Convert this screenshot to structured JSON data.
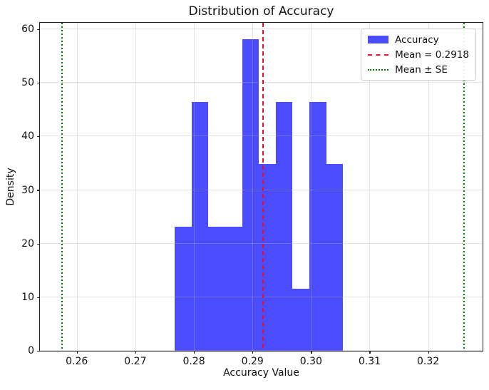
{
  "chart_data": {
    "type": "bar",
    "subtype": "histogram",
    "title": "Distribution of Accuracy",
    "xlabel": "Accuracy Value",
    "ylabel": "Density",
    "xlim": [
      0.2537,
      0.3293
    ],
    "ylim": [
      0,
      61.2
    ],
    "grid": true,
    "grid_color": "rgba(176,176,176,0.35)",
    "x_ticks": [
      0.26,
      0.27,
      0.28,
      0.29,
      0.3,
      0.31,
      0.32
    ],
    "x_tick_labels": [
      "0.26",
      "0.27",
      "0.28",
      "0.29",
      "0.30",
      "0.31",
      "0.32"
    ],
    "y_ticks": [
      0,
      10,
      20,
      30,
      40,
      50,
      60
    ],
    "y_tick_labels": [
      "0",
      "10",
      "20",
      "30",
      "40",
      "50",
      "60"
    ],
    "histogram": {
      "label": "Accuracy",
      "color": "#4C4CFF",
      "bin_edges": [
        0.27673,
        0.2796,
        0.28248,
        0.28535,
        0.28822,
        0.29109,
        0.29396,
        0.29684,
        0.29971,
        0.30258,
        0.30545
      ],
      "densities": [
        23.2,
        46.5,
        23.2,
        23.2,
        58.1,
        34.8,
        46.5,
        11.6,
        46.5,
        34.8
      ]
    },
    "vlines": [
      {
        "x": 0.2918,
        "color": "#E8112D",
        "style": "dashed",
        "label": "Mean = 0.2918"
      },
      {
        "x": 0.2575,
        "color": "#008000",
        "style": "dotted",
        "label": "Mean ± SE"
      },
      {
        "x": 0.3261,
        "color": "#008000",
        "style": "dotted",
        "label": "Mean ± SE"
      }
    ],
    "legend": {
      "position": "top-right",
      "items": [
        {
          "swatch": "patch",
          "color": "#4C4CFF",
          "label": "Accuracy"
        },
        {
          "swatch": "dashed-line",
          "color": "#E8112D",
          "label": "Mean = 0.2918"
        },
        {
          "swatch": "dotted-line",
          "color": "#008000",
          "label": "Mean ± SE"
        }
      ]
    }
  }
}
